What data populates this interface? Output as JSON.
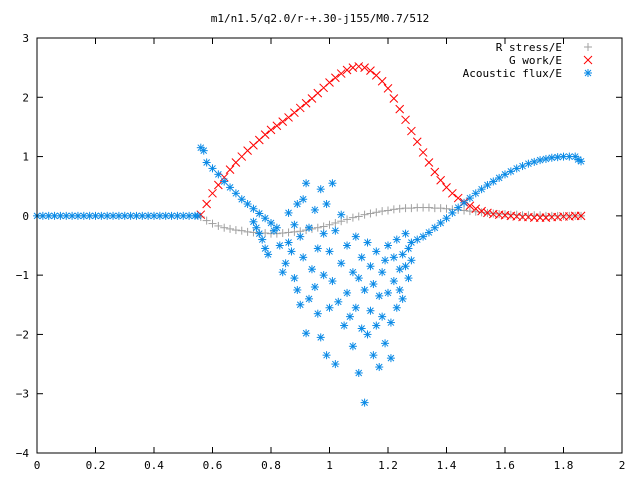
{
  "chart_data": {
    "type": "scatter",
    "title": "m1/n1.5/q2.0/r-+.30-j155/M0.7/512",
    "xlabel": "",
    "ylabel": "",
    "xlim": [
      0,
      2
    ],
    "ylim": [
      -4,
      3
    ],
    "xticks": [
      "0",
      "0.2",
      "0.4",
      "0.6",
      "0.8",
      "1",
      "1.2",
      "1.4",
      "1.6",
      "1.8",
      "2"
    ],
    "yticks": [
      "3",
      "2",
      "1",
      "0",
      "−1",
      "−2",
      "−3",
      "−4"
    ],
    "grid": false,
    "legend_position": "top-right",
    "series": [
      {
        "name": "R stress/E",
        "marker": "plus",
        "color": "#a0a0a0",
        "points": [
          [
            0.56,
            -0.02
          ],
          [
            0.58,
            -0.08
          ],
          [
            0.6,
            -0.13
          ],
          [
            0.62,
            -0.17
          ],
          [
            0.64,
            -0.2
          ],
          [
            0.66,
            -0.22
          ],
          [
            0.68,
            -0.24
          ],
          [
            0.7,
            -0.25
          ],
          [
            0.72,
            -0.27
          ],
          [
            0.74,
            -0.28
          ],
          [
            0.76,
            -0.29
          ],
          [
            0.78,
            -0.29
          ],
          [
            0.8,
            -0.3
          ],
          [
            0.82,
            -0.3
          ],
          [
            0.84,
            -0.29
          ],
          [
            0.86,
            -0.28
          ],
          [
            0.88,
            -0.27
          ],
          [
            0.9,
            -0.26
          ],
          [
            0.92,
            -0.24
          ],
          [
            0.94,
            -0.22
          ],
          [
            0.96,
            -0.2
          ],
          [
            0.98,
            -0.18
          ],
          [
            1.0,
            -0.15
          ],
          [
            1.02,
            -0.12
          ],
          [
            1.04,
            -0.09
          ],
          [
            1.06,
            -0.06
          ],
          [
            1.08,
            -0.03
          ],
          [
            1.1,
            -0.01
          ],
          [
            1.12,
            0.02
          ],
          [
            1.14,
            0.04
          ],
          [
            1.16,
            0.06
          ],
          [
            1.18,
            0.08
          ],
          [
            1.2,
            0.09
          ],
          [
            1.22,
            0.11
          ],
          [
            1.24,
            0.12
          ],
          [
            1.26,
            0.13
          ],
          [
            1.28,
            0.13
          ],
          [
            1.3,
            0.14
          ],
          [
            1.32,
            0.14
          ],
          [
            1.34,
            0.14
          ],
          [
            1.36,
            0.13
          ],
          [
            1.38,
            0.13
          ],
          [
            1.4,
            0.12
          ],
          [
            1.42,
            0.11
          ],
          [
            1.44,
            0.1
          ],
          [
            1.46,
            0.09
          ],
          [
            1.48,
            0.08
          ],
          [
            1.5,
            0.07
          ],
          [
            1.52,
            0.06
          ],
          [
            1.54,
            0.05
          ],
          [
            1.56,
            0.04
          ],
          [
            1.58,
            0.03
          ],
          [
            1.6,
            0.03
          ],
          [
            1.62,
            0.02
          ],
          [
            1.64,
            0.02
          ],
          [
            1.66,
            0.01
          ],
          [
            1.68,
            0.01
          ],
          [
            1.7,
            0.01
          ],
          [
            1.72,
            0.01
          ],
          [
            1.74,
            0.0
          ],
          [
            1.76,
            0.0
          ],
          [
            1.78,
            0.0
          ],
          [
            1.8,
            0.0
          ],
          [
            1.82,
            0.0
          ],
          [
            1.84,
            0.0
          ],
          [
            1.86,
            0.0
          ]
        ]
      },
      {
        "name": "G work/E",
        "marker": "cross",
        "color": "#ff0000",
        "points": [
          [
            0.56,
            0.02
          ],
          [
            0.58,
            0.2
          ],
          [
            0.6,
            0.38
          ],
          [
            0.62,
            0.52
          ],
          [
            0.64,
            0.65
          ],
          [
            0.66,
            0.78
          ],
          [
            0.68,
            0.9
          ],
          [
            0.7,
            1.0
          ],
          [
            0.72,
            1.1
          ],
          [
            0.74,
            1.19
          ],
          [
            0.76,
            1.28
          ],
          [
            0.78,
            1.37
          ],
          [
            0.8,
            1.45
          ],
          [
            0.82,
            1.52
          ],
          [
            0.84,
            1.59
          ],
          [
            0.86,
            1.66
          ],
          [
            0.88,
            1.74
          ],
          [
            0.9,
            1.82
          ],
          [
            0.92,
            1.9
          ],
          [
            0.94,
            1.98
          ],
          [
            0.96,
            2.07
          ],
          [
            0.98,
            2.16
          ],
          [
            1.0,
            2.25
          ],
          [
            1.02,
            2.33
          ],
          [
            1.04,
            2.4
          ],
          [
            1.06,
            2.46
          ],
          [
            1.08,
            2.5
          ],
          [
            1.1,
            2.52
          ],
          [
            1.12,
            2.5
          ],
          [
            1.14,
            2.45
          ],
          [
            1.16,
            2.37
          ],
          [
            1.18,
            2.27
          ],
          [
            1.2,
            2.15
          ],
          [
            1.22,
            1.98
          ],
          [
            1.24,
            1.8
          ],
          [
            1.26,
            1.62
          ],
          [
            1.28,
            1.43
          ],
          [
            1.3,
            1.25
          ],
          [
            1.32,
            1.07
          ],
          [
            1.34,
            0.9
          ],
          [
            1.36,
            0.74
          ],
          [
            1.38,
            0.6
          ],
          [
            1.4,
            0.48
          ],
          [
            1.42,
            0.38
          ],
          [
            1.44,
            0.3
          ],
          [
            1.46,
            0.23
          ],
          [
            1.48,
            0.17
          ],
          [
            1.5,
            0.12
          ],
          [
            1.52,
            0.08
          ],
          [
            1.54,
            0.05
          ],
          [
            1.56,
            0.03
          ],
          [
            1.58,
            0.02
          ],
          [
            1.6,
            0.01
          ],
          [
            1.62,
            0.0
          ],
          [
            1.64,
            -0.01
          ],
          [
            1.66,
            -0.02
          ],
          [
            1.68,
            -0.02
          ],
          [
            1.7,
            -0.03
          ],
          [
            1.72,
            -0.03
          ],
          [
            1.74,
            -0.03
          ],
          [
            1.76,
            -0.02
          ],
          [
            1.78,
            -0.02
          ],
          [
            1.8,
            -0.01
          ],
          [
            1.82,
            -0.01
          ],
          [
            1.84,
            0.0
          ],
          [
            1.86,
            0.0
          ]
        ]
      },
      {
        "name": "Acoustic flux/E",
        "marker": "star",
        "color": "#0a8ae6",
        "points": [
          [
            0.0,
            0.0
          ],
          [
            0.02,
            0.0
          ],
          [
            0.04,
            0.0
          ],
          [
            0.06,
            0.0
          ],
          [
            0.08,
            0.0
          ],
          [
            0.1,
            0.0
          ],
          [
            0.12,
            0.0
          ],
          [
            0.14,
            0.0
          ],
          [
            0.16,
            0.0
          ],
          [
            0.18,
            0.0
          ],
          [
            0.2,
            0.0
          ],
          [
            0.22,
            0.0
          ],
          [
            0.24,
            0.0
          ],
          [
            0.26,
            0.0
          ],
          [
            0.28,
            0.0
          ],
          [
            0.3,
            0.0
          ],
          [
            0.32,
            0.0
          ],
          [
            0.34,
            0.0
          ],
          [
            0.36,
            0.0
          ],
          [
            0.38,
            0.0
          ],
          [
            0.4,
            0.0
          ],
          [
            0.42,
            0.0
          ],
          [
            0.44,
            0.0
          ],
          [
            0.46,
            0.0
          ],
          [
            0.48,
            0.0
          ],
          [
            0.5,
            0.0
          ],
          [
            0.52,
            0.0
          ],
          [
            0.54,
            0.0
          ],
          [
            0.55,
            0.0
          ],
          [
            0.56,
            1.15
          ],
          [
            0.57,
            1.1
          ],
          [
            0.58,
            0.9
          ],
          [
            0.6,
            0.8
          ],
          [
            0.62,
            0.7
          ],
          [
            0.64,
            0.58
          ],
          [
            0.66,
            0.48
          ],
          [
            0.68,
            0.38
          ],
          [
            0.7,
            0.28
          ],
          [
            0.72,
            0.2
          ],
          [
            0.74,
            0.12
          ],
          [
            0.76,
            0.04
          ],
          [
            0.78,
            -0.04
          ],
          [
            0.8,
            -0.12
          ],
          [
            0.82,
            -0.2
          ],
          [
            1.28,
            -0.45
          ],
          [
            1.3,
            -0.4
          ],
          [
            1.32,
            -0.35
          ],
          [
            1.34,
            -0.28
          ],
          [
            1.36,
            -0.2
          ],
          [
            1.38,
            -0.12
          ],
          [
            1.4,
            -0.04
          ],
          [
            1.42,
            0.05
          ],
          [
            1.44,
            0.14
          ],
          [
            1.46,
            0.22
          ],
          [
            1.48,
            0.3
          ],
          [
            1.5,
            0.38
          ],
          [
            1.52,
            0.45
          ],
          [
            1.54,
            0.52
          ],
          [
            1.56,
            0.58
          ],
          [
            1.58,
            0.64
          ],
          [
            1.6,
            0.7
          ],
          [
            1.62,
            0.75
          ],
          [
            1.64,
            0.8
          ],
          [
            1.66,
            0.84
          ],
          [
            1.68,
            0.88
          ],
          [
            1.7,
            0.91
          ],
          [
            1.72,
            0.94
          ],
          [
            1.74,
            0.96
          ],
          [
            1.76,
            0.98
          ],
          [
            1.78,
            0.99
          ],
          [
            1.8,
            1.0
          ],
          [
            1.82,
            1.0
          ],
          [
            1.84,
            1.0
          ],
          [
            1.85,
            0.95
          ],
          [
            1.86,
            0.92
          ],
          [
            0.74,
            -0.1
          ],
          [
            0.75,
            -0.2
          ],
          [
            0.76,
            -0.3
          ],
          [
            0.77,
            -0.4
          ],
          [
            0.78,
            -0.55
          ],
          [
            0.79,
            -0.65
          ],
          [
            0.81,
            -0.25
          ],
          [
            0.83,
            -0.5
          ],
          [
            0.84,
            -0.95
          ],
          [
            0.85,
            -0.8
          ],
          [
            0.86,
            0.05
          ],
          [
            0.86,
            -0.45
          ],
          [
            0.87,
            -0.6
          ],
          [
            0.88,
            -0.15
          ],
          [
            0.88,
            -1.05
          ],
          [
            0.89,
            0.2
          ],
          [
            0.89,
            -1.25
          ],
          [
            0.9,
            -0.35
          ],
          [
            0.9,
            -1.5
          ],
          [
            0.91,
            0.28
          ],
          [
            0.91,
            -0.7
          ],
          [
            0.92,
            0.55
          ],
          [
            0.92,
            -1.98
          ],
          [
            0.93,
            -0.2
          ],
          [
            0.93,
            -1.4
          ],
          [
            0.94,
            -0.9
          ],
          [
            0.95,
            0.1
          ],
          [
            0.95,
            -1.2
          ],
          [
            0.96,
            -0.55
          ],
          [
            0.96,
            -1.65
          ],
          [
            0.97,
            0.45
          ],
          [
            0.97,
            -2.05
          ],
          [
            0.98,
            -0.3
          ],
          [
            0.98,
            -1.0
          ],
          [
            0.99,
            0.2
          ],
          [
            0.99,
            -2.35
          ],
          [
            1.0,
            -0.6
          ],
          [
            1.0,
            -1.55
          ],
          [
            1.01,
            0.55
          ],
          [
            1.01,
            -1.1
          ],
          [
            1.02,
            -0.25
          ],
          [
            1.02,
            -2.5
          ],
          [
            1.03,
            -1.45
          ],
          [
            1.04,
            -0.8
          ],
          [
            1.04,
            0.02
          ],
          [
            1.05,
            -1.85
          ],
          [
            1.06,
            -0.5
          ],
          [
            1.06,
            -1.3
          ],
          [
            1.07,
            -1.7
          ],
          [
            1.08,
            -0.95
          ],
          [
            1.08,
            -2.2
          ],
          [
            1.09,
            -0.35
          ],
          [
            1.09,
            -1.55
          ],
          [
            1.1,
            -1.05
          ],
          [
            1.1,
            -2.65
          ],
          [
            1.11,
            -0.7
          ],
          [
            1.11,
            -1.9
          ],
          [
            1.12,
            -1.25
          ],
          [
            1.12,
            -3.15
          ],
          [
            1.13,
            -0.45
          ],
          [
            1.13,
            -2.0
          ],
          [
            1.14,
            -1.6
          ],
          [
            1.14,
            -0.85
          ],
          [
            1.15,
            -2.35
          ],
          [
            1.15,
            -1.15
          ],
          [
            1.16,
            -0.6
          ],
          [
            1.16,
            -1.85
          ],
          [
            1.17,
            -1.35
          ],
          [
            1.17,
            -2.55
          ],
          [
            1.18,
            -0.95
          ],
          [
            1.18,
            -1.7
          ],
          [
            1.19,
            -0.75
          ],
          [
            1.19,
            -2.15
          ],
          [
            1.2,
            -1.3
          ],
          [
            1.2,
            -0.5
          ],
          [
            1.21,
            -1.8
          ],
          [
            1.21,
            -2.4
          ],
          [
            1.22,
            -1.1
          ],
          [
            1.22,
            -0.7
          ],
          [
            1.23,
            -1.55
          ],
          [
            1.23,
            -0.4
          ],
          [
            1.24,
            -0.9
          ],
          [
            1.24,
            -1.25
          ],
          [
            1.25,
            -0.65
          ],
          [
            1.25,
            -1.4
          ],
          [
            1.26,
            -0.85
          ],
          [
            1.26,
            -0.3
          ],
          [
            1.27,
            -1.05
          ],
          [
            1.27,
            -0.55
          ],
          [
            1.28,
            -0.75
          ]
        ]
      }
    ]
  },
  "colors": {
    "background": "#ffffff",
    "axis": "#000000"
  }
}
